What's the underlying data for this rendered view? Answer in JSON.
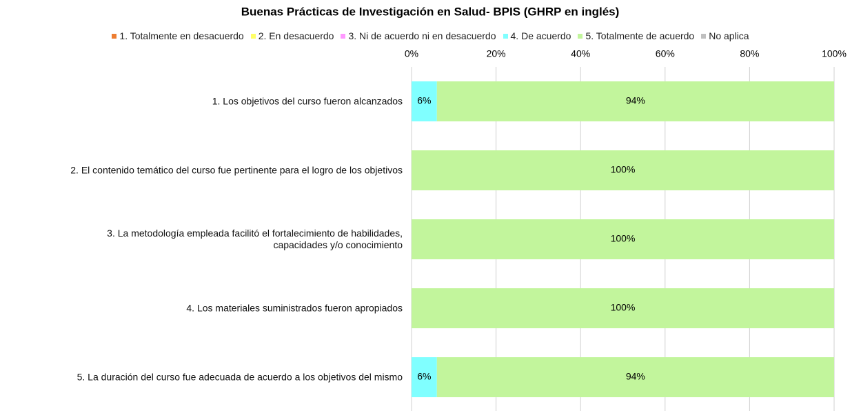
{
  "chart_data": {
    "type": "stacked_barh",
    "title": "Buenas Prácticas de Investigación en Salud- BPIS (GHRP en inglés)",
    "categories": [
      "1. Los objetivos del curso fueron alcanzados",
      "2. El contenido temático del curso fue pertinente para el logro de los objetivos",
      "3. La metodología empleada facilitó el fortalecimiento de habilidades,\ncapacidades y/o conocimiento",
      "4. Los materiales suministrados fueron apropiados",
      "5. La duración del curso fue adecuada de acuerdo a los objetivos del mismo"
    ],
    "series": [
      {
        "name": "1. Totalmente en desacuerdo",
        "color": "#ed7d31",
        "values": [
          0,
          0,
          0,
          0,
          0
        ]
      },
      {
        "name": "2. En desacuerdo",
        "color": "#ffff66",
        "values": [
          0,
          0,
          0,
          0,
          0
        ]
      },
      {
        "name": "3. Ni de acuerdo ni en desacuerdo",
        "color": "#ff99ff",
        "values": [
          0,
          0,
          0,
          0,
          0
        ]
      },
      {
        "name": "4. De acuerdo",
        "color": "#80ffff",
        "values": [
          6,
          0,
          0,
          0,
          6
        ],
        "value_labels": [
          "6%",
          null,
          null,
          null,
          "6%"
        ]
      },
      {
        "name": "5. Totalmente de acuerdo",
        "color": "#c2f59c",
        "values": [
          94,
          100,
          100,
          100,
          94
        ],
        "value_labels": [
          "94%",
          "100%",
          "100%",
          "100%",
          "94%"
        ]
      },
      {
        "name": "No aplica",
        "color": "#bfbfbf",
        "values": [
          0,
          0,
          0,
          0,
          0
        ]
      }
    ],
    "xlim": [
      0,
      100
    ],
    "xticks": [
      {
        "value": 0,
        "label": "0%"
      },
      {
        "value": 20,
        "label": "20%"
      },
      {
        "value": 40,
        "label": "40%"
      },
      {
        "value": 60,
        "label": "60%"
      },
      {
        "value": 80,
        "label": "80%"
      },
      {
        "value": 100,
        "label": "100%"
      }
    ],
    "grid": true,
    "legend": "top"
  }
}
